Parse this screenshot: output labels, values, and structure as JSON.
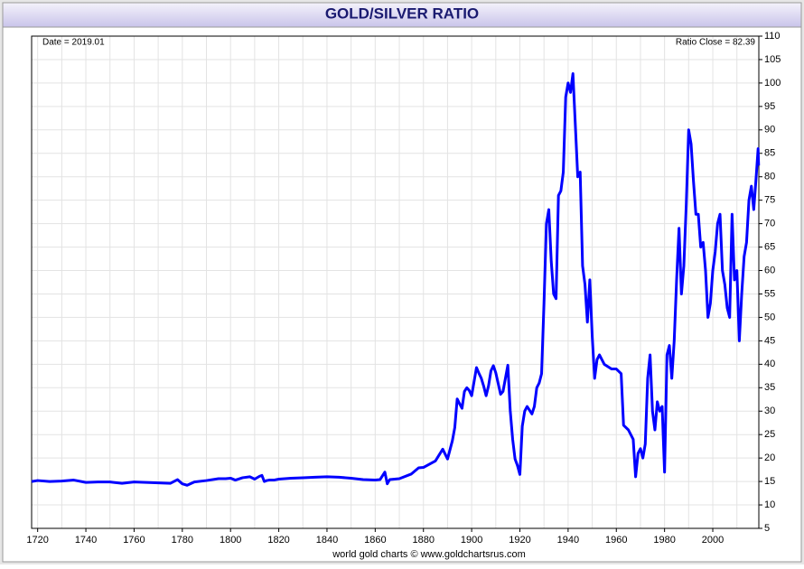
{
  "chart_data": {
    "type": "line",
    "title": "GOLD/SILVER RATIO",
    "top_left_label": "Date = 2019.01",
    "top_right_label": "Ratio Close = 82.39",
    "footer": "world gold charts © www.goldchartsrus.com",
    "color": "#0000ff",
    "grid": true,
    "x": [
      1717.5,
      1720,
      1725,
      1730,
      1735,
      1740,
      1745,
      1750,
      1755,
      1760,
      1765,
      1770,
      1775,
      1778,
      1780,
      1782,
      1785,
      1790,
      1795,
      1798,
      1800,
      1802,
      1805,
      1808,
      1810,
      1812,
      1813,
      1814,
      1815,
      1816,
      1818,
      1820,
      1825,
      1830,
      1835,
      1840,
      1845,
      1850,
      1855,
      1860,
      1862,
      1864,
      1865,
      1866,
      1870,
      1875,
      1878,
      1880,
      1885,
      1888,
      1890,
      1892,
      1893,
      1894,
      1895,
      1896,
      1897,
      1898,
      1899,
      1900,
      1902,
      1903,
      1904,
      1905,
      1906,
      1907,
      1908,
      1909,
      1910,
      1912,
      1913,
      1914,
      1915,
      1916,
      1917,
      1918,
      1919,
      1920,
      1921,
      1922,
      1923,
      1925,
      1926,
      1927,
      1928,
      1929,
      1930,
      1931,
      1932,
      1933,
      1934,
      1935,
      1936,
      1937,
      1938,
      1939,
      1940,
      1941,
      1942,
      1943,
      1944,
      1945,
      1946,
      1947,
      1948,
      1949,
      1950,
      1951,
      1952,
      1953,
      1955,
      1958,
      1960,
      1962,
      1963,
      1965,
      1967,
      1968,
      1969,
      1970,
      1971,
      1972,
      1973,
      1974,
      1975,
      1976,
      1977,
      1978,
      1979,
      1980,
      1981,
      1982,
      1983,
      1984,
      1985,
      1986,
      1987,
      1988,
      1989,
      1990,
      1991,
      1992,
      1993,
      1994,
      1995,
      1996,
      1997,
      1998,
      1999,
      2000,
      2001,
      2002,
      2003,
      2004,
      2005,
      2006,
      2007,
      2008,
      2009,
      2010,
      2011,
      2012,
      2013,
      2014,
      2015,
      2016,
      2017,
      2018,
      2018.8,
      2019.01
    ],
    "values": [
      15,
      15.2,
      15.0,
      15.1,
      15.3,
      14.8,
      14.9,
      14.9,
      14.6,
      14.9,
      14.8,
      14.7,
      14.6,
      15.4,
      14.5,
      14.2,
      14.9,
      15.2,
      15.6,
      15.6,
      15.7,
      15.3,
      15.8,
      16.0,
      15.5,
      16.1,
      16.3,
      15.0,
      15.2,
      15.3,
      15.3,
      15.5,
      15.7,
      15.8,
      15.9,
      16.0,
      15.9,
      15.7,
      15.4,
      15.3,
      15.4,
      17,
      14.5,
      15.4,
      15.6,
      16.6,
      17.9,
      18.0,
      19.4,
      21.9,
      19.8,
      23.7,
      26.5,
      32.6,
      31.6,
      30.6,
      34.2,
      35.0,
      34.4,
      33.3,
      39.3,
      38.1,
      37.0,
      35.3,
      33.3,
      35.4,
      38.6,
      39.7,
      38.2,
      33.6,
      34.2,
      37.0,
      39.8,
      30.1,
      24.0,
      19.8,
      18.4,
      16.5,
      26.8,
      30,
      31,
      29.4,
      31,
      35,
      36,
      38,
      53,
      70,
      73,
      62,
      55,
      54,
      76,
      77,
      81,
      97,
      100,
      98,
      102,
      91,
      80,
      81,
      61,
      57,
      49,
      58,
      46,
      37,
      41,
      42,
      40,
      39,
      39,
      38,
      27,
      26,
      24,
      16,
      21,
      22,
      20,
      23,
      37,
      42,
      30,
      26,
      32,
      30,
      31,
      17,
      42,
      44,
      37,
      45,
      58,
      69,
      55,
      61,
      74,
      90,
      87,
      79,
      72,
      72,
      65,
      66,
      60,
      50,
      53,
      60,
      64,
      70,
      72,
      60,
      57,
      52,
      50,
      72,
      58,
      60,
      45,
      55,
      63,
      66,
      75,
      78,
      73,
      80,
      86,
      82.39
    ],
    "xlim": [
      1717.5,
      2019.1
    ],
    "ylim": [
      5,
      110
    ],
    "xticks": [
      1720,
      1740,
      1760,
      1780,
      1800,
      1820,
      1840,
      1860,
      1880,
      1900,
      1920,
      1940,
      1960,
      1980,
      2000
    ],
    "xgrid": [
      1720,
      1730,
      1740,
      1750,
      1760,
      1770,
      1780,
      1790,
      1800,
      1810,
      1820,
      1830,
      1840,
      1850,
      1860,
      1870,
      1880,
      1890,
      1900,
      1910,
      1920,
      1930,
      1940,
      1950,
      1960,
      1970,
      1980,
      1990,
      2000,
      2010
    ],
    "yticks": [
      5,
      10,
      15,
      20,
      25,
      30,
      35,
      40,
      45,
      50,
      55,
      60,
      65,
      70,
      75,
      80,
      85,
      90,
      95,
      100,
      105,
      110
    ]
  }
}
